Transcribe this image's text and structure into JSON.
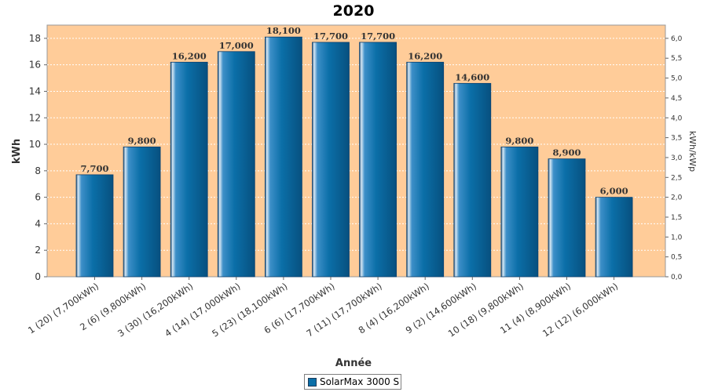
{
  "chart_data": {
    "type": "bar",
    "title": "2020",
    "xlabel": "Année",
    "ylabel": "kWh",
    "ylabel_right": "kWh/kWp",
    "ylim": [
      0,
      19
    ],
    "ylim_right": [
      0,
      6.3333
    ],
    "yticks": [
      "0",
      "2",
      "4",
      "6",
      "8",
      "10",
      "12",
      "14",
      "16",
      "18"
    ],
    "yticks_right": [
      "0,0",
      "0,5",
      "1,0",
      "1,5",
      "2,0",
      "2,5",
      "3,0",
      "3,5",
      "4,0",
      "4,5",
      "5,0",
      "5,5",
      "6,0"
    ],
    "grid": true,
    "legend_position": "bottom",
    "categories": [
      "1 (20)  (7,700kWh)",
      "2 (6)  (9,800kWh)",
      "3 (30)  (16,200kWh)",
      "4 (14)  (17,000kWh)",
      "5 (23)  (18,100kWh)",
      "6 (6)  (17,700kWh)",
      "7 (11)  (17,700kWh)",
      "8 (4)  (16,200kWh)",
      "9 (2)  (14,600kWh)",
      "10 (18)  (9,800kWh)",
      "11 (4)  (8,900kWh)",
      "12 (12)  (6,000kWh)"
    ],
    "series": [
      {
        "name": "SolarMax 3000 S",
        "values": [
          7.7,
          9.8,
          16.2,
          17.0,
          18.1,
          17.7,
          17.7,
          16.2,
          14.6,
          9.8,
          8.9,
          6.0
        ],
        "labels": [
          "7,700",
          "9,800",
          "16,200",
          "17,000",
          "18,100",
          "17,700",
          "17,700",
          "16,200",
          "14,600",
          "9,800",
          "8,900",
          "6,000"
        ]
      }
    ],
    "colors": {
      "plot_background": "#ffcc99",
      "bar": "#0b6fa8",
      "bar_dark": "#0a4f80",
      "grid": "#ffffff"
    }
  }
}
